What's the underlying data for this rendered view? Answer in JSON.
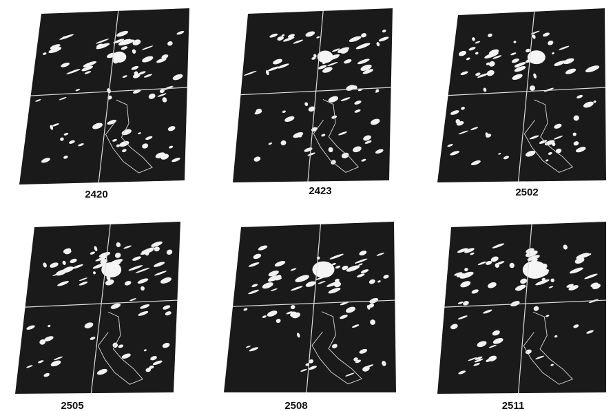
{
  "panels": [
    {
      "label": "2420"
    },
    {
      "label": "2423"
    },
    {
      "label": "2502"
    },
    {
      "label": "2505"
    },
    {
      "label": "2508"
    },
    {
      "label": "2511"
    }
  ]
}
